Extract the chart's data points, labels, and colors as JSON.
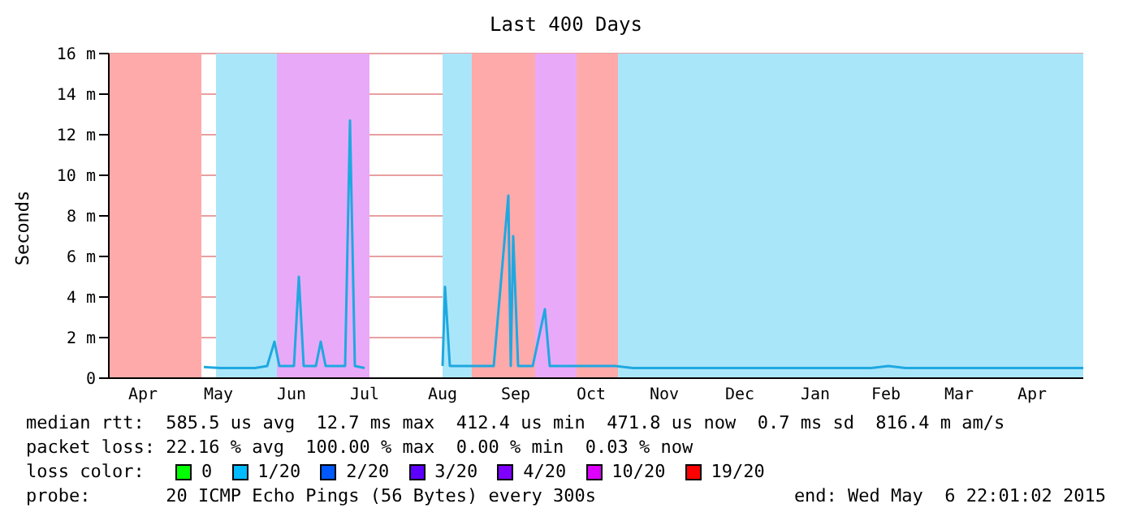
{
  "chart_data": {
    "type": "line",
    "title": "Last 400 Days",
    "ylabel": "Seconds",
    "xlim": [
      "2014-04-01",
      "2015-05-06"
    ],
    "xticks": [
      {
        "value": "2014-04-15",
        "label": "Apr"
      },
      {
        "value": "2014-05-16",
        "label": "May"
      },
      {
        "value": "2014-06-15",
        "label": "Jun"
      },
      {
        "value": "2014-07-15",
        "label": "Jul"
      },
      {
        "value": "2014-08-16",
        "label": "Aug"
      },
      {
        "value": "2014-09-15",
        "label": "Sep"
      },
      {
        "value": "2014-10-16",
        "label": "Oct"
      },
      {
        "value": "2014-11-15",
        "label": "Nov"
      },
      {
        "value": "2014-12-16",
        "label": "Dec"
      },
      {
        "value": "2015-01-16",
        "label": "Jan"
      },
      {
        "value": "2015-02-14",
        "label": "Feb"
      },
      {
        "value": "2015-03-16",
        "label": "Mar"
      },
      {
        "value": "2015-04-15",
        "label": "Apr"
      }
    ],
    "ylim": [
      0,
      16
    ],
    "yticks": [
      0,
      {
        "value": 2,
        "label": "2 m"
      },
      {
        "value": 4,
        "label": "4 m"
      },
      {
        "value": 6,
        "label": "6 m"
      },
      {
        "value": 8,
        "label": "8 m"
      },
      {
        "value": 10,
        "label": "10 m"
      },
      {
        "value": 12,
        "label": "12 m"
      },
      {
        "value": 14,
        "label": "14 m"
      },
      {
        "value": 16,
        "label": "16 m"
      }
    ],
    "grid": "y",
    "marker": "none",
    "x": [
      "2014-05-10",
      "2014-05-17",
      "2014-05-24",
      "2014-05-31",
      "2014-06-05",
      "2014-06-08",
      "2014-06-10",
      "2014-06-16",
      "2014-06-18",
      "2014-06-20",
      "2014-06-25",
      "2014-06-27",
      "2014-06-29",
      "2014-07-03",
      "2014-07-07",
      "2014-07-09",
      "2014-07-11",
      "2014-07-15",
      "2014-07-17",
      "2014-08-16",
      "2014-08-17",
      "2014-08-19",
      "2014-08-25",
      "2014-08-31",
      "2014-09-06",
      "2014-09-12",
      "2014-09-13",
      "2014-09-14",
      "2014-09-16",
      "2014-09-22",
      "2014-09-27",
      "2014-09-29",
      "2014-10-05",
      "2014-10-12",
      "2014-10-19",
      "2014-10-26",
      "2014-11-02",
      "2014-11-16",
      "2014-11-30",
      "2014-12-14",
      "2014-12-28",
      "2015-01-11",
      "2015-01-25",
      "2015-02-08",
      "2015-02-15",
      "2015-02-22",
      "2015-03-08",
      "2015-03-22",
      "2015-04-05",
      "2015-04-19",
      "2015-05-06"
    ],
    "series": [
      {
        "color": "#1fa8e0",
        "values": [
          0.55,
          0.5,
          0.5,
          0.5,
          0.6,
          1.8,
          0.6,
          0.6,
          5,
          0.6,
          0.6,
          1.8,
          0.6,
          0.6,
          0.6,
          12.7,
          0.6,
          0.5,
          null,
          0.6,
          4.5,
          0.6,
          0.6,
          0.6,
          0.6,
          9,
          0.6,
          7,
          0.6,
          0.6,
          3.4,
          0.6,
          0.6,
          0.6,
          0.6,
          0.6,
          0.5,
          0.5,
          0.5,
          0.5,
          0.5,
          0.5,
          0.5,
          0.5,
          0.6,
          0.5,
          0.5,
          0.5,
          0.5,
          0.5,
          0.5
        ]
      }
    ],
    "bands": [
      {
        "axis": "x",
        "from": "2014-04-01",
        "to": "2014-05-09",
        "color": "#ffaaaa"
      },
      {
        "axis": "x",
        "from": "2014-05-15",
        "to": "2014-06-09",
        "color": "#aae6fa"
      },
      {
        "axis": "x",
        "from": "2014-06-09",
        "to": "2014-07-17",
        "color": "#e8aaf8"
      },
      {
        "axis": "x",
        "from": "2014-08-16",
        "to": "2014-08-28",
        "color": "#aae6fa"
      },
      {
        "axis": "x",
        "from": "2014-08-28",
        "to": "2014-09-23",
        "color": "#ffaaaa"
      },
      {
        "axis": "x",
        "from": "2014-09-23",
        "to": "2014-10-10",
        "color": "#e8aaf8"
      },
      {
        "axis": "x",
        "from": "2014-10-10",
        "to": "2014-10-27",
        "color": "#ffaaaa"
      },
      {
        "axis": "x",
        "from": "2014-10-27",
        "to": "2015-05-06",
        "color": "#aae6fa"
      }
    ],
    "annotations": [
      "median rtt:  585.5 us avg  12.7 ms max  412.4 us min  471.8 us now  0.7 ms sd  816.4 m am/s",
      "packet loss: 22.16 % avg  100.00 % max  0.00 % min  0.03 % now",
      "loss color:",
      "0",
      "1/20",
      "2/20",
      "3/20",
      "4/20",
      "10/20",
      "19/20",
      "probe:       20 ICMP Echo Pings (56 Bytes) every 300s",
      "end: Wed May  6 22:01:02 2015"
    ]
  }
}
